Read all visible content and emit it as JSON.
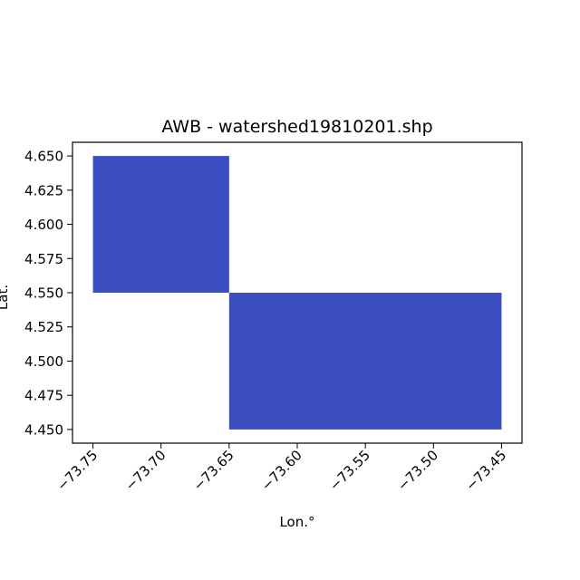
{
  "chart_data": {
    "type": "heatmap",
    "title": "AWB - watershed19810201.shp",
    "xlabel": "Lon.°",
    "ylabel": "Lat.",
    "xlim": [
      -73.765,
      -73.435
    ],
    "ylim": [
      4.44,
      4.66
    ],
    "x_ticks": [
      -73.75,
      -73.7,
      -73.65,
      -73.6,
      -73.55,
      -73.5,
      -73.45
    ],
    "x_tick_labels": [
      "−73.75",
      "−73.70",
      "−73.65",
      "−73.60",
      "−73.55",
      "−73.50",
      "−73.45"
    ],
    "y_ticks": [
      4.45,
      4.475,
      4.5,
      4.525,
      4.55,
      4.575,
      4.6,
      4.625,
      4.65
    ],
    "y_tick_labels": [
      "4.450",
      "4.475",
      "4.500",
      "4.525",
      "4.550",
      "4.575",
      "4.600",
      "4.625",
      "4.650"
    ],
    "grid": false,
    "cells": [
      {
        "lon_min": -73.75,
        "lon_max": -73.65,
        "lat_min": 4.55,
        "lat_max": 4.65
      },
      {
        "lon_min": -73.65,
        "lon_max": -73.45,
        "lat_min": 4.45,
        "lat_max": 4.55
      }
    ],
    "cell_color": "#3d4ec2"
  }
}
